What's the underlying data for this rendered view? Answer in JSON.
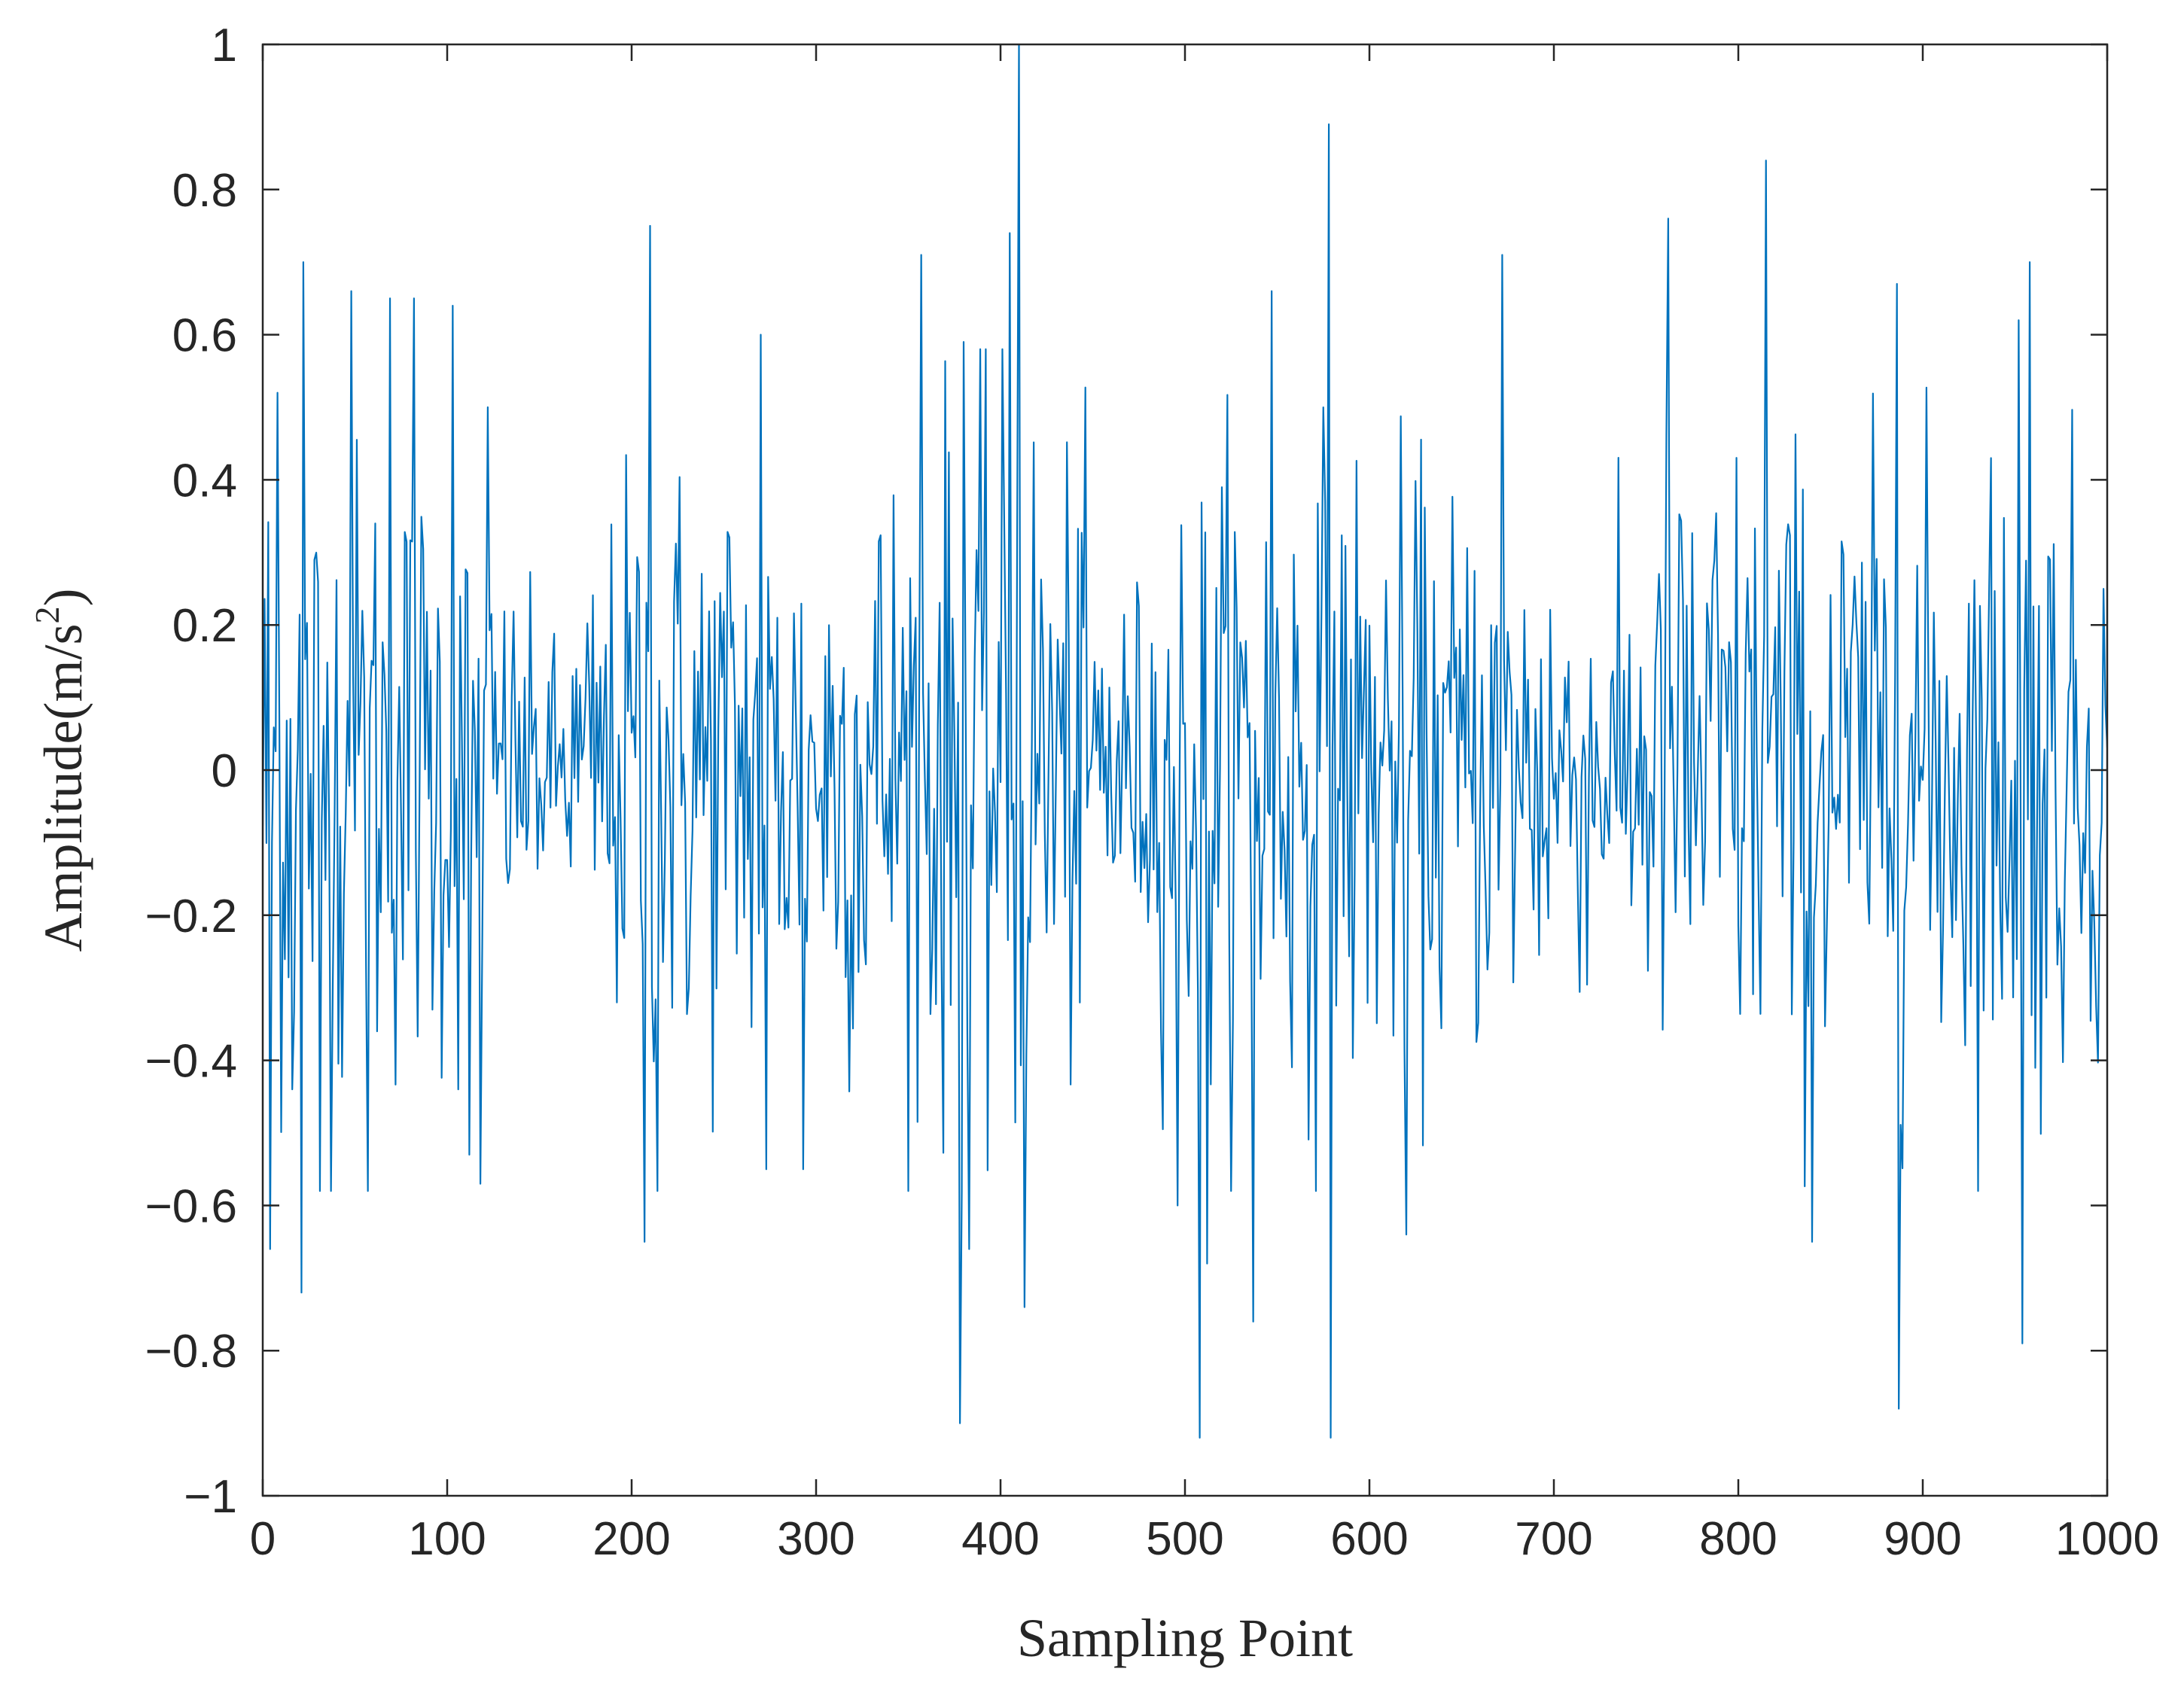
{
  "chart_data": {
    "type": "line",
    "title": "",
    "xlabel": "Sampling Point",
    "ylabel": {
      "main": "Amplitude(m/s",
      "superscript": "2",
      "close": ")"
    },
    "xlim": [
      0,
      1000
    ],
    "ylim": [
      -1,
      1
    ],
    "x_ticks": [
      "0",
      "100",
      "200",
      "300",
      "400",
      "500",
      "600",
      "700",
      "800",
      "900",
      "1000"
    ],
    "y_ticks": [
      "-1",
      "-0.8",
      "-0.6",
      "-0.4",
      "-0.2",
      "0",
      "0.2",
      "0.4",
      "0.6",
      "0.8",
      "1"
    ],
    "grid": false,
    "box": true,
    "line_color": "#0072BD",
    "series": [
      {
        "x_start": 0,
        "x_step": 1,
        "n_points": 1001,
        "amplitude_envelope_std": [
          [
            0,
            0.26
          ],
          [
            40,
            0.24
          ],
          [
            100,
            0.22
          ],
          [
            130,
            0.14
          ],
          [
            160,
            0.09
          ],
          [
            200,
            0.22
          ],
          [
            250,
            0.23
          ],
          [
            300,
            0.2
          ],
          [
            350,
            0.24
          ],
          [
            400,
            0.3
          ],
          [
            440,
            0.22
          ],
          [
            470,
            0.12
          ],
          [
            500,
            0.22
          ],
          [
            550,
            0.25
          ],
          [
            600,
            0.23
          ],
          [
            650,
            0.2
          ],
          [
            700,
            0.19
          ],
          [
            730,
            0.12
          ],
          [
            760,
            0.23
          ],
          [
            800,
            0.24
          ],
          [
            860,
            0.22
          ],
          [
            900,
            0.23
          ],
          [
            960,
            0.24
          ],
          [
            1000,
            0.2
          ]
        ],
        "peaks": [
          {
            "x": 4,
            "y": -0.66
          },
          {
            "x": 8,
            "y": 0.52
          },
          {
            "x": 16,
            "y": -0.44
          },
          {
            "x": 22,
            "y": 0.7
          },
          {
            "x": 21,
            "y": -0.72
          },
          {
            "x": 31,
            "y": -0.58
          },
          {
            "x": 48,
            "y": 0.66
          },
          {
            "x": 57,
            "y": -0.58
          },
          {
            "x": 69,
            "y": 0.65
          },
          {
            "x": 82,
            "y": 0.65
          },
          {
            "x": 103,
            "y": 0.64
          },
          {
            "x": 106,
            "y": -0.44
          },
          {
            "x": 112,
            "y": -0.53
          },
          {
            "x": 118,
            "y": -0.57
          },
          {
            "x": 122,
            "y": 0.5
          },
          {
            "x": 207,
            "y": -0.65
          },
          {
            "x": 210,
            "y": 0.75
          },
          {
            "x": 214,
            "y": -0.58
          },
          {
            "x": 270,
            "y": 0.6
          },
          {
            "x": 273,
            "y": -0.55
          },
          {
            "x": 293,
            "y": -0.55
          },
          {
            "x": 357,
            "y": 0.71
          },
          {
            "x": 378,
            "y": -0.9
          },
          {
            "x": 380,
            "y": 0.59
          },
          {
            "x": 383,
            "y": -0.66
          },
          {
            "x": 405,
            "y": 0.74
          },
          {
            "x": 410,
            "y": 1.0
          },
          {
            "x": 413,
            "y": -0.74
          },
          {
            "x": 496,
            "y": -0.6
          },
          {
            "x": 508,
            "y": -0.92
          },
          {
            "x": 512,
            "y": -0.68
          },
          {
            "x": 537,
            "y": -0.76
          },
          {
            "x": 547,
            "y": 0.66
          },
          {
            "x": 578,
            "y": 0.89
          },
          {
            "x": 579,
            "y": -0.92
          },
          {
            "x": 620,
            "y": -0.64
          },
          {
            "x": 672,
            "y": 0.71
          },
          {
            "x": 762,
            "y": 0.76
          },
          {
            "x": 815,
            "y": 0.84
          },
          {
            "x": 840,
            "y": -0.65
          },
          {
            "x": 886,
            "y": 0.67
          },
          {
            "x": 887,
            "y": -0.88
          },
          {
            "x": 952,
            "y": 0.62
          },
          {
            "x": 954,
            "y": -0.79
          },
          {
            "x": 958,
            "y": 0.7
          }
        ]
      }
    ]
  }
}
